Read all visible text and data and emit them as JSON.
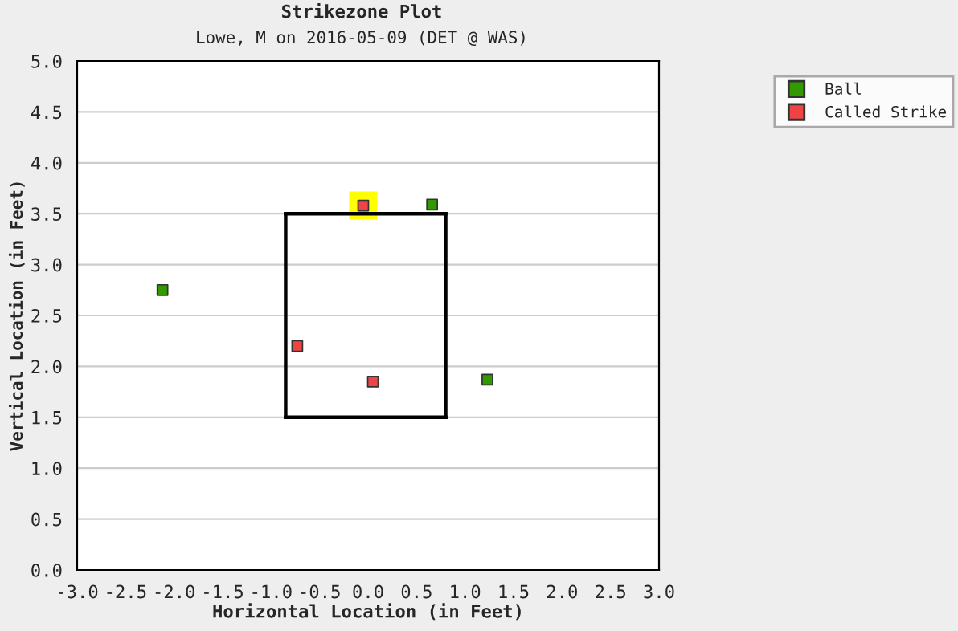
{
  "chart_data": {
    "type": "scatter",
    "title": "Strikezone Plot",
    "subtitle": "Lowe, M on 2016-05-09 (DET @ WAS)",
    "xlabel": "Horizontal Location (in Feet)",
    "ylabel": "Vertical Location (in Feet)",
    "xlim": [
      -3.0,
      3.0
    ],
    "ylim": [
      0.0,
      5.0
    ],
    "xticks": [
      {
        "value": -3.0,
        "label": "-3.0"
      },
      {
        "value": -2.5,
        "label": "-2.5"
      },
      {
        "value": -2.0,
        "label": "-2.0"
      },
      {
        "value": -1.5,
        "label": "-1.5"
      },
      {
        "value": -1.0,
        "label": "-1.0"
      },
      {
        "value": -0.5,
        "label": "-0.5"
      },
      {
        "value": 0.0,
        "label": "0.0"
      },
      {
        "value": 0.5,
        "label": "0.5"
      },
      {
        "value": 1.0,
        "label": "1.0"
      },
      {
        "value": 1.5,
        "label": "1.5"
      },
      {
        "value": 2.0,
        "label": "2.0"
      },
      {
        "value": 2.5,
        "label": "2.5"
      },
      {
        "value": 3.0,
        "label": "3.0"
      }
    ],
    "yticks": [
      {
        "value": 0.0,
        "label": "0.0"
      },
      {
        "value": 0.5,
        "label": "0.5"
      },
      {
        "value": 1.0,
        "label": "1.0"
      },
      {
        "value": 1.5,
        "label": "1.5"
      },
      {
        "value": 2.0,
        "label": "2.0"
      },
      {
        "value": 2.5,
        "label": "2.5"
      },
      {
        "value": 3.0,
        "label": "3.0"
      },
      {
        "value": 3.5,
        "label": "3.5"
      },
      {
        "value": 4.0,
        "label": "4.0"
      },
      {
        "value": 4.5,
        "label": "4.5"
      },
      {
        "value": 5.0,
        "label": "5.0"
      }
    ],
    "grid": "y",
    "legend": "right",
    "marker": "square",
    "series": [
      {
        "color": "#ffff00",
        "x": [
          -0.05
        ],
        "values": [
          3.58
        ]
      },
      {
        "type": "line",
        "marker": "none",
        "color": "#000000",
        "x": [
          -0.85,
          0.8
        ],
        "values": [
          1.5,
          1.5
        ]
      },
      {
        "type": "line",
        "marker": "none",
        "color": "#000000",
        "x": [
          -0.85,
          0.8
        ],
        "values": [
          3.5,
          3.5
        ]
      },
      {
        "type": "line",
        "marker": "none",
        "color": "#000000",
        "x": [
          -0.85,
          -0.85
        ],
        "values": [
          1.5,
          3.5
        ]
      },
      {
        "type": "line",
        "marker": "none",
        "color": "#000000",
        "x": [
          0.8,
          0.8
        ],
        "values": [
          1.5,
          3.5
        ]
      },
      {
        "type": "scatter",
        "name": "Ball",
        "color": "#339900",
        "x": [
          -2.12,
          0.66,
          1.23
        ],
        "values": [
          2.75,
          3.59,
          1.87
        ]
      },
      {
        "type": "scatter",
        "name": "Called Strike",
        "color": "#ee4444",
        "x": [
          -0.73,
          0.05,
          -0.05
        ],
        "values": [
          2.2,
          1.85,
          3.58
        ]
      }
    ]
  }
}
